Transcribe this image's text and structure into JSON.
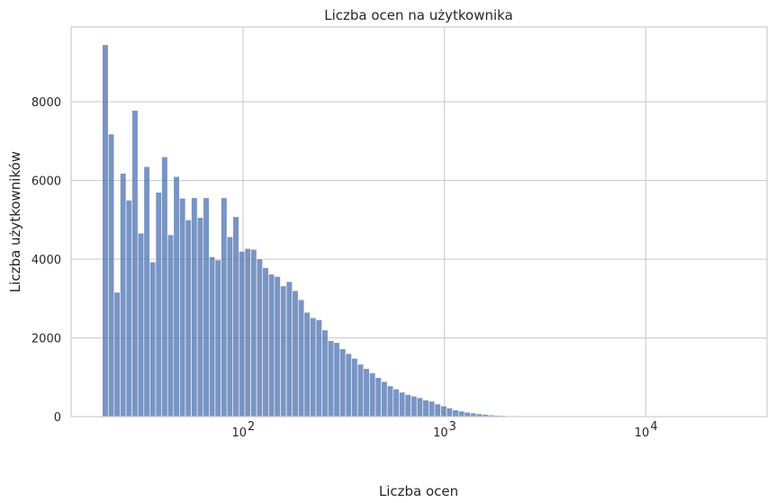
{
  "chart_data": {
    "type": "bar",
    "title": "Liczba ocen na użytkownika",
    "xlabel": "Liczba ocen",
    "ylabel": "Liczba użytkowników",
    "x_scale": "log",
    "xlim": [
      14,
      40000
    ],
    "ylim": [
      0,
      9900
    ],
    "bar_color": "#4c72b0",
    "grid": true,
    "x_ticks": [
      {
        "value": 100,
        "base": "10",
        "exp": "2"
      },
      {
        "value": 1000,
        "base": "10",
        "exp": "3"
      },
      {
        "value": 10000,
        "base": "10",
        "exp": "4"
      }
    ],
    "y_ticks": [
      0,
      2000,
      4000,
      6000,
      8000
    ],
    "y_tick_labels": [
      "0",
      "2000",
      "4000",
      "6000",
      "8000"
    ],
    "bins": {
      "x_start": 20,
      "x_end": 35000,
      "counts": [
        9450,
        7180,
        3160,
        6180,
        5500,
        7780,
        4660,
        6350,
        3930,
        5700,
        6600,
        4620,
        6100,
        5550,
        5000,
        5560,
        5060,
        5560,
        4060,
        3980,
        5560,
        4570,
        5080,
        4200,
        4270,
        4250,
        4010,
        3780,
        3620,
        3560,
        3320,
        3430,
        3200,
        2970,
        2650,
        2510,
        2460,
        2200,
        1930,
        1880,
        1720,
        1600,
        1480,
        1330,
        1220,
        1110,
        990,
        890,
        780,
        700,
        620,
        560,
        520,
        480,
        420,
        390,
        320,
        270,
        220,
        170,
        140,
        110,
        90,
        70,
        55,
        42,
        32,
        24,
        18,
        14,
        11,
        9,
        7,
        6,
        5,
        4,
        3,
        3,
        2,
        2,
        2,
        1,
        1,
        1,
        1,
        1,
        1,
        1,
        1,
        1,
        1,
        1,
        1,
        1,
        1,
        1,
        1,
        1,
        1,
        1,
        1,
        1,
        1,
        1,
        1,
        1,
        1,
        1,
        1,
        1
      ]
    }
  }
}
